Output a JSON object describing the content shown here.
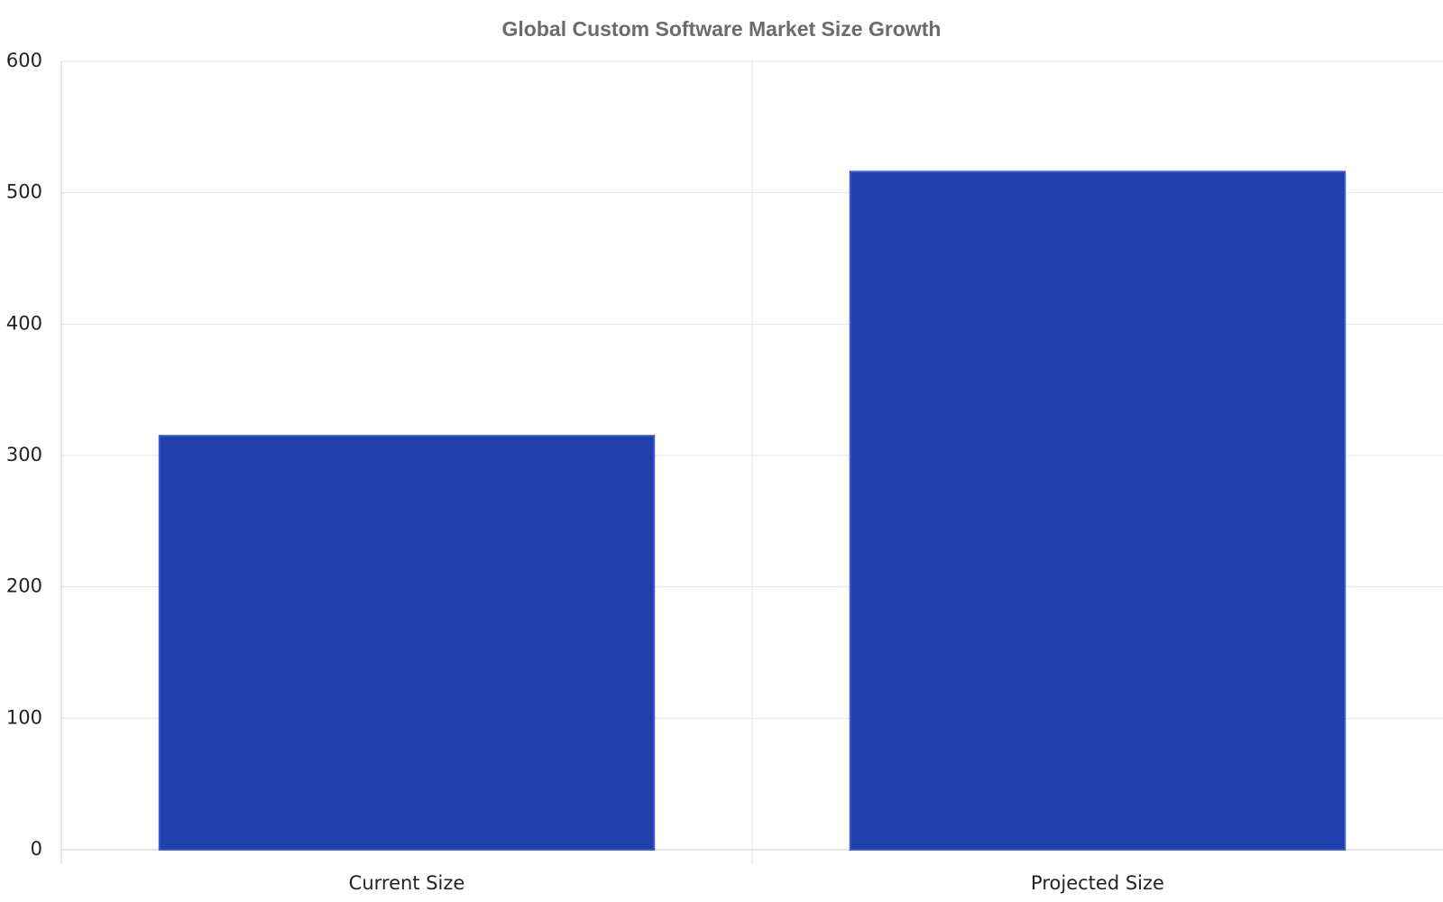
{
  "chart_data": {
    "type": "bar",
    "title": "Global Custom Software Market Size Growth",
    "categories": [
      "Current Size",
      "Projected Size"
    ],
    "values": [
      315,
      516
    ],
    "color": "#1f40ad",
    "ylim": [
      0,
      600
    ],
    "yticks": [
      0,
      100,
      200,
      300,
      400,
      500,
      600
    ],
    "grid": true
  }
}
